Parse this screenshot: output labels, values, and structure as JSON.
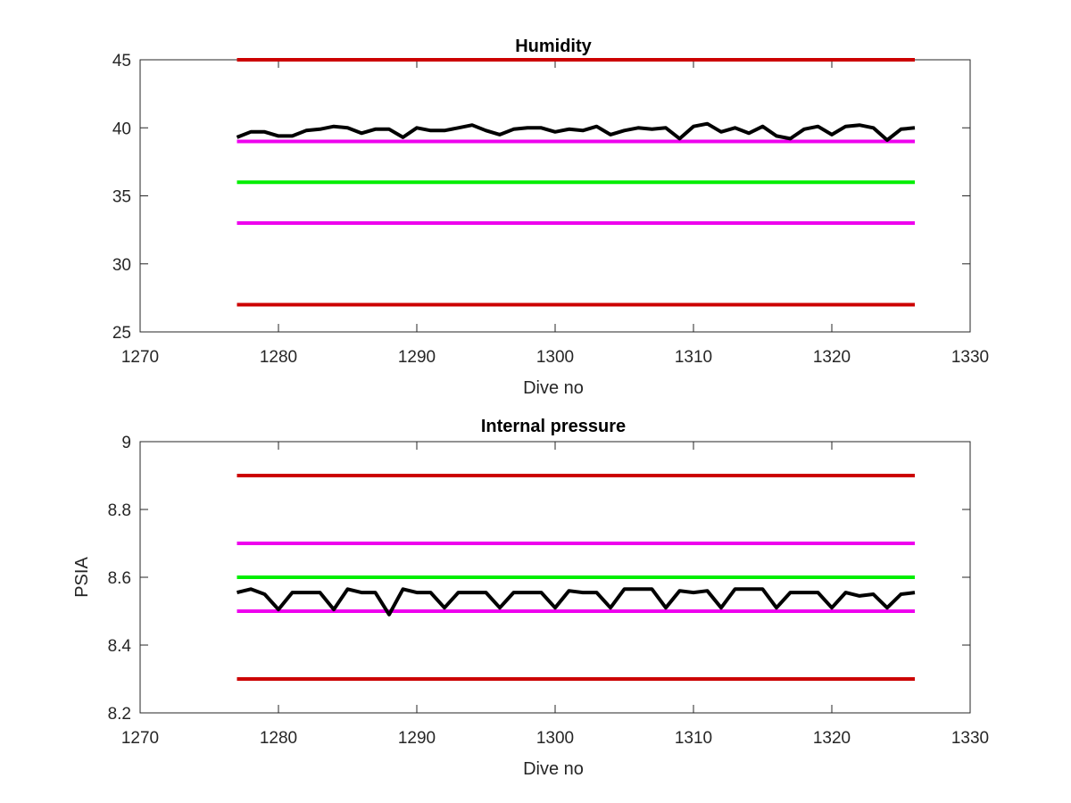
{
  "chart_data": [
    {
      "type": "line",
      "title": "Humidity",
      "xlabel": "Dive no",
      "ylabel": "",
      "xlim": [
        1270,
        1330
      ],
      "ylim": [
        25,
        45
      ],
      "xticks": [
        1270,
        1280,
        1290,
        1300,
        1310,
        1320,
        1330
      ],
      "yticks": [
        25,
        30,
        35,
        40,
        45
      ],
      "grid": false,
      "box": true,
      "series": [
        {
          "color": "#cc0000",
          "x": [
            1277,
            1326
          ],
          "y": [
            45,
            45
          ]
        },
        {
          "color": "#ee00ee",
          "x": [
            1277,
            1326
          ],
          "y": [
            39,
            39
          ]
        },
        {
          "color": "#00ee00",
          "x": [
            1277,
            1326
          ],
          "y": [
            36,
            36
          ]
        },
        {
          "color": "#ee00ee",
          "x": [
            1277,
            1326
          ],
          "y": [
            33,
            33
          ]
        },
        {
          "color": "#cc0000",
          "x": [
            1277,
            1326
          ],
          "y": [
            27,
            27
          ]
        },
        {
          "color": "#000000",
          "x": [
            1277,
            1278,
            1279,
            1280,
            1281,
            1282,
            1283,
            1284,
            1285,
            1286,
            1287,
            1288,
            1289,
            1290,
            1291,
            1292,
            1293,
            1294,
            1295,
            1296,
            1297,
            1298,
            1299,
            1300,
            1301,
            1302,
            1303,
            1304,
            1305,
            1306,
            1307,
            1308,
            1309,
            1310,
            1311,
            1312,
            1313,
            1314,
            1315,
            1316,
            1317,
            1318,
            1319,
            1320,
            1321,
            1322,
            1323,
            1324,
            1325,
            1326
          ],
          "y": [
            39.3,
            39.7,
            39.7,
            39.4,
            39.4,
            39.8,
            39.9,
            40.1,
            40.0,
            39.6,
            39.9,
            39.9,
            39.3,
            40.0,
            39.8,
            39.8,
            40.0,
            40.2,
            39.8,
            39.5,
            39.9,
            40.0,
            40.0,
            39.7,
            39.9,
            39.8,
            40.1,
            39.5,
            39.8,
            40.0,
            39.9,
            40.0,
            39.2,
            40.1,
            40.3,
            39.7,
            40.0,
            39.6,
            40.1,
            39.4,
            39.2,
            39.9,
            40.1,
            39.5,
            40.1,
            40.2,
            40.0,
            39.1,
            39.9,
            40.0
          ]
        }
      ]
    },
    {
      "type": "line",
      "title": "Internal pressure",
      "xlabel": "Dive no",
      "ylabel": "PSIA",
      "xlim": [
        1270,
        1330
      ],
      "ylim": [
        8.2,
        9.0
      ],
      "xticks": [
        1270,
        1280,
        1290,
        1300,
        1310,
        1320,
        1330
      ],
      "yticks": [
        8.2,
        8.4,
        8.6,
        8.8,
        9
      ],
      "grid": false,
      "box": true,
      "series": [
        {
          "color": "#cc0000",
          "x": [
            1277,
            1326
          ],
          "y": [
            8.9,
            8.9
          ]
        },
        {
          "color": "#ee00ee",
          "x": [
            1277,
            1326
          ],
          "y": [
            8.7,
            8.7
          ]
        },
        {
          "color": "#00ee00",
          "x": [
            1277,
            1326
          ],
          "y": [
            8.6,
            8.6
          ]
        },
        {
          "color": "#ee00ee",
          "x": [
            1277,
            1326
          ],
          "y": [
            8.5,
            8.5
          ]
        },
        {
          "color": "#cc0000",
          "x": [
            1277,
            1326
          ],
          "y": [
            8.3,
            8.3
          ]
        },
        {
          "color": "#000000",
          "x": [
            1277,
            1278,
            1279,
            1280,
            1281,
            1282,
            1283,
            1284,
            1285,
            1286,
            1287,
            1288,
            1289,
            1290,
            1291,
            1292,
            1293,
            1294,
            1295,
            1296,
            1297,
            1298,
            1299,
            1300,
            1301,
            1302,
            1303,
            1304,
            1305,
            1306,
            1307,
            1308,
            1309,
            1310,
            1311,
            1312,
            1313,
            1314,
            1315,
            1316,
            1317,
            1318,
            1319,
            1320,
            1321,
            1322,
            1323,
            1324,
            1325,
            1326
          ],
          "y": [
            8.555,
            8.565,
            8.55,
            8.505,
            8.555,
            8.555,
            8.555,
            8.505,
            8.565,
            8.555,
            8.555,
            8.49,
            8.565,
            8.555,
            8.555,
            8.51,
            8.555,
            8.555,
            8.555,
            8.51,
            8.555,
            8.555,
            8.555,
            8.51,
            8.56,
            8.555,
            8.555,
            8.51,
            8.565,
            8.565,
            8.565,
            8.51,
            8.56,
            8.555,
            8.56,
            8.51,
            8.565,
            8.565,
            8.565,
            8.51,
            8.555,
            8.555,
            8.555,
            8.51,
            8.555,
            8.545,
            8.55,
            8.51,
            8.55,
            8.555
          ]
        }
      ]
    }
  ]
}
